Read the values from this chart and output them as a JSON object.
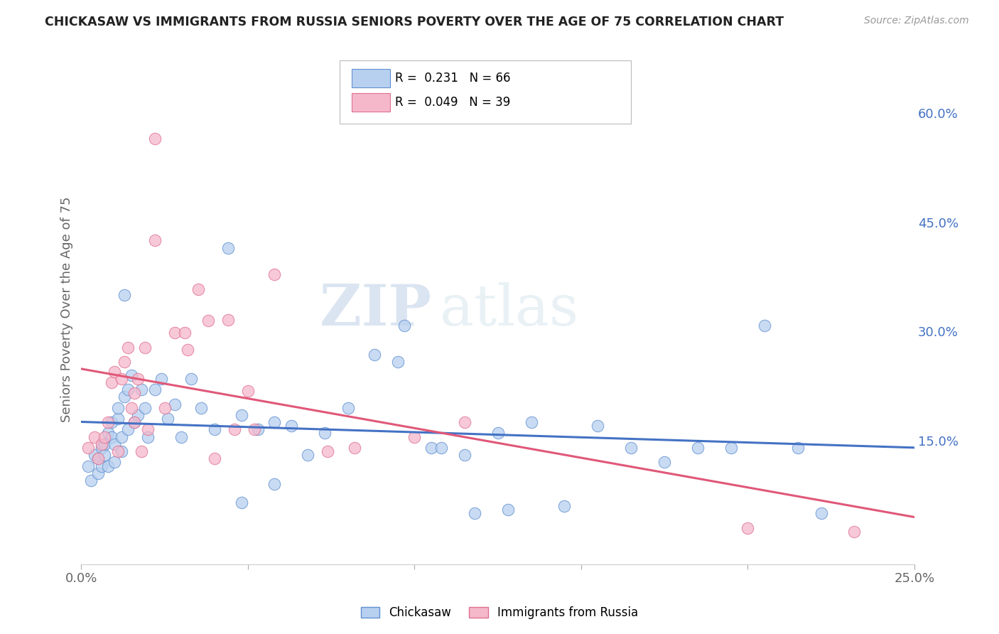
{
  "title": "CHICKASAW VS IMMIGRANTS FROM RUSSIA SENIORS POVERTY OVER THE AGE OF 75 CORRELATION CHART",
  "source": "Source: ZipAtlas.com",
  "ylabel": "Seniors Poverty Over the Age of 75",
  "xlim": [
    0.0,
    0.25
  ],
  "ylim": [
    -0.02,
    0.68
  ],
  "xticks": [
    0.0,
    0.05,
    0.1,
    0.15,
    0.2,
    0.25
  ],
  "xticklabels": [
    "0.0%",
    "",
    "",
    "",
    "",
    "25.0%"
  ],
  "yticks_right": [
    0.15,
    0.3,
    0.45,
    0.6
  ],
  "ytick_right_labels": [
    "15.0%",
    "30.0%",
    "45.0%",
    "60.0%"
  ],
  "series1_name": "Chickasaw",
  "series1_R": "0.231",
  "series1_N": "66",
  "series1_color": "#b8d0f0",
  "series1_edge_color": "#6090d0",
  "series1_line_color": "#4472c4",
  "series2_name": "Immigrants from Russia",
  "series2_R": "0.049",
  "series2_N": "39",
  "series2_color": "#f5b8cb",
  "series2_edge_color": "#e07090",
  "series2_line_color": "#e05878",
  "background_color": "#ffffff",
  "grid_color": "#d0d0d0",
  "watermark_zip": "ZIP",
  "watermark_atlas": "atlas",
  "series1_x": [
    0.002,
    0.003,
    0.004,
    0.005,
    0.005,
    0.006,
    0.006,
    0.007,
    0.007,
    0.008,
    0.008,
    0.009,
    0.009,
    0.01,
    0.01,
    0.011,
    0.011,
    0.012,
    0.012,
    0.013,
    0.013,
    0.014,
    0.014,
    0.015,
    0.016,
    0.017,
    0.018,
    0.019,
    0.02,
    0.022,
    0.024,
    0.026,
    0.028,
    0.03,
    0.033,
    0.036,
    0.04,
    0.044,
    0.048,
    0.053,
    0.058,
    0.063,
    0.068,
    0.073,
    0.08,
    0.088,
    0.095,
    0.105,
    0.115,
    0.125,
    0.135,
    0.145,
    0.155,
    0.165,
    0.175,
    0.185,
    0.195,
    0.205,
    0.215,
    0.222,
    0.097,
    0.108,
    0.118,
    0.128,
    0.048,
    0.058
  ],
  "series1_y": [
    0.115,
    0.095,
    0.13,
    0.105,
    0.125,
    0.14,
    0.115,
    0.13,
    0.145,
    0.115,
    0.16,
    0.155,
    0.175,
    0.145,
    0.12,
    0.18,
    0.195,
    0.155,
    0.135,
    0.21,
    0.35,
    0.165,
    0.22,
    0.24,
    0.175,
    0.185,
    0.22,
    0.195,
    0.155,
    0.22,
    0.235,
    0.18,
    0.2,
    0.155,
    0.235,
    0.195,
    0.165,
    0.415,
    0.185,
    0.165,
    0.175,
    0.17,
    0.13,
    0.16,
    0.195,
    0.268,
    0.258,
    0.14,
    0.13,
    0.16,
    0.175,
    0.06,
    0.17,
    0.14,
    0.12,
    0.14,
    0.14,
    0.308,
    0.14,
    0.05,
    0.308,
    0.14,
    0.05,
    0.055,
    0.065,
    0.09
  ],
  "series2_x": [
    0.002,
    0.004,
    0.005,
    0.006,
    0.007,
    0.008,
    0.009,
    0.01,
    0.011,
    0.012,
    0.013,
    0.014,
    0.015,
    0.016,
    0.017,
    0.019,
    0.022,
    0.025,
    0.028,
    0.031,
    0.035,
    0.04,
    0.046,
    0.052,
    0.058,
    0.02,
    0.032,
    0.038,
    0.044,
    0.05,
    0.074,
    0.082,
    0.016,
    0.1,
    0.115,
    0.018,
    0.022,
    0.2,
    0.232
  ],
  "series2_y": [
    0.14,
    0.155,
    0.125,
    0.145,
    0.155,
    0.175,
    0.23,
    0.245,
    0.135,
    0.235,
    0.258,
    0.278,
    0.195,
    0.215,
    0.235,
    0.278,
    0.425,
    0.195,
    0.298,
    0.298,
    0.358,
    0.125,
    0.165,
    0.165,
    0.378,
    0.165,
    0.275,
    0.315,
    0.316,
    0.218,
    0.135,
    0.14,
    0.175,
    0.155,
    0.175,
    0.135,
    0.565,
    0.03,
    0.025
  ]
}
